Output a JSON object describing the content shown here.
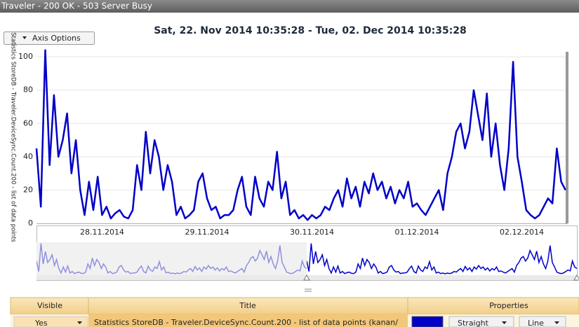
{
  "window_title": "Traveler - 200 OK - 503 Server Busy",
  "axis_options_button": "Axis Options",
  "chart_data": {
    "type": "line",
    "title": "Sat, 22. Nov 2014 10:35:28 - Tue, 02. Dec 2014 10:35:28",
    "y_label": "Statistics StoreDB - Traveler.DeviceSync.Count.200 - list of data points",
    "categories": [
      null,
      null,
      null,
      null,
      null,
      null,
      null,
      null,
      null,
      null,
      null,
      null,
      null,
      null,
      null,
      "28.11.2014",
      null,
      null,
      null,
      null,
      null,
      null,
      null,
      null,
      null,
      null,
      null,
      null,
      null,
      null,
      null,
      null,
      null,
      null,
      null,
      null,
      null,
      null,
      null,
      "29.11.2014",
      null,
      null,
      null,
      null,
      null,
      null,
      null,
      null,
      null,
      null,
      null,
      null,
      null,
      null,
      null,
      null,
      null,
      null,
      null,
      null,
      null,
      null,
      null,
      "30.11.2014",
      null,
      null,
      null,
      null,
      null,
      null,
      null,
      null,
      null,
      null,
      null,
      null,
      null,
      null,
      null,
      null,
      null,
      null,
      null,
      null,
      null,
      null,
      null,
      "01.12.2014",
      null,
      null,
      null,
      null,
      null,
      null,
      null,
      null,
      null,
      null,
      null,
      null,
      null,
      null,
      null,
      null,
      null,
      null,
      null,
      null,
      null,
      null,
      null,
      "02.12.2014",
      null,
      null,
      null,
      null,
      null,
      null,
      null,
      null,
      null,
      null
    ],
    "series": [
      {
        "name": "Statistics StoreDB - Traveler.DeviceSync.Count.200 - list of data points (kanan/",
        "color": "#0000c8",
        "values": [
          45,
          10,
          104,
          35,
          77,
          40,
          50,
          66,
          30,
          50,
          20,
          5,
          25,
          8,
          28,
          5,
          10,
          3,
          6,
          8,
          4,
          3,
          8,
          35,
          20,
          55,
          30,
          50,
          40,
          20,
          35,
          25,
          5,
          10,
          3,
          5,
          8,
          25,
          30,
          15,
          8,
          10,
          3,
          5,
          5,
          8,
          20,
          28,
          10,
          5,
          28,
          15,
          10,
          25,
          20,
          43,
          15,
          25,
          5,
          8,
          3,
          5,
          2,
          5,
          3,
          5,
          10,
          8,
          15,
          20,
          10,
          27,
          15,
          22,
          10,
          25,
          18,
          30,
          20,
          25,
          15,
          22,
          12,
          20,
          15,
          25,
          10,
          12,
          8,
          5,
          10,
          15,
          20,
          8,
          30,
          40,
          55,
          60,
          45,
          55,
          80,
          65,
          50,
          78,
          40,
          60,
          35,
          20,
          45,
          97,
          40,
          25,
          8,
          5,
          3,
          5,
          10,
          15,
          12,
          45,
          25,
          20
        ]
      }
    ],
    "ylim": [
      0,
      103
    ],
    "yticks": [
      0,
      20,
      40,
      60,
      80,
      100
    ],
    "grid": true
  },
  "table": {
    "headers": [
      "Visible",
      "Title",
      "Properties"
    ],
    "rows": [
      [
        "Yes",
        "Statistics StoreDB - Traveler.DeviceSync.Count.200 - list of data points (kanan/",
        "Straight",
        "Line"
      ]
    ]
  }
}
